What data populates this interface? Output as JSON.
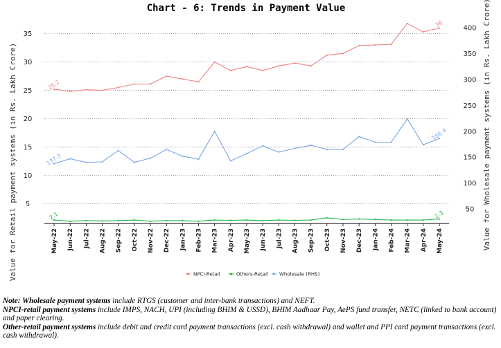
{
  "chart_data": {
    "type": "line",
    "title": "Chart - 6: Trends in Payment Value",
    "ylabel_left": "Value for Retail payment systems (in Rs. Lakh Crore)",
    "ylabel_right": "Value for Wholesale payment systems (in Rs. Lakh Crore)",
    "categories": [
      "May-22",
      "Jun-22",
      "Jul-22",
      "Aug-22",
      "Sep-22",
      "Oct-22",
      "Nov-22",
      "Dec-22",
      "Jan-23",
      "Feb-23",
      "Mar-23",
      "Apr-23",
      "May-23",
      "Jun-23",
      "Jul-23",
      "Aug-23",
      "Sep-23",
      "Oct-23",
      "Nov-23",
      "Dec-23",
      "Jan-24",
      "Feb-24",
      "Mar-24",
      "Apr-24",
      "May-24"
    ],
    "ylim_left": [
      1.5,
      38.5
    ],
    "yticks_left": [
      5,
      10,
      15,
      20,
      25,
      30,
      35
    ],
    "ylim_right": [
      22,
      427
    ],
    "yticks_right": [
      50,
      100,
      150,
      200,
      250,
      300,
      350,
      400
    ],
    "grid": "horizontal dotted",
    "legend_position": "bottom",
    "series": [
      {
        "name": "NPCI-Retail",
        "axis": "left",
        "color": "#f08080",
        "values": [
          25.2,
          24.8,
          25.1,
          25.0,
          25.5,
          26.1,
          26.1,
          27.5,
          27.0,
          26.5,
          30.0,
          28.5,
          29.2,
          28.5,
          29.3,
          29.8,
          29.3,
          31.2,
          31.5,
          32.9,
          33.0,
          33.1,
          36.8,
          35.3,
          36
        ],
        "labels": {
          "0": "25.2",
          "24": "36"
        }
      },
      {
        "name": "Others-Retail",
        "axis": "left",
        "color": "#22b44a",
        "values": [
          2.1,
          1.9,
          2.0,
          1.95,
          2.0,
          2.1,
          1.9,
          2.0,
          2.0,
          1.9,
          2.1,
          2.05,
          2.1,
          2.0,
          2.1,
          2.05,
          2.1,
          2.5,
          2.2,
          2.3,
          2.2,
          2.1,
          2.1,
          2.1,
          2.3
        ],
        "labels": {
          "0": "2.1",
          "24": "2.3"
        }
      },
      {
        "name": "Wholesale (RHS)",
        "axis": "right",
        "color": "#7aa6e6",
        "values": [
          137.3,
          147.0,
          140.0,
          141.0,
          163.0,
          140.0,
          148.0,
          165.0,
          152.0,
          146.0,
          200.0,
          143.0,
          157.0,
          172.0,
          160.0,
          167.0,
          173.0,
          165.0,
          165.0,
          190.0,
          179.0,
          179.0,
          224.0,
          174.0,
          186.4
        ],
        "labels": {
          "0": "137.3",
          "24": "186.4"
        }
      }
    ]
  },
  "legend": {
    "items": [
      "NPCI-Retail",
      "Others-Retail",
      "Wholesale (RHS)"
    ]
  },
  "notes": {
    "note1_lead": "Note: Wholesale payment systems",
    "note1_rest": " include RTGS (customer and inter-bank transactions) and NEFT.",
    "note2_lead": "NPCI-retail payment systems",
    "note2_rest": " include IMPS, NACH, UPI (including BHIM & USSD), BHIM Aadhaar Pay, AePS fund transfer, NETC (linked to bank account) and paper clearing.",
    "note3_lead": "Other-retail payment systems",
    "note3_rest": " include debit and credit card payment transactions (excl. cash withdrawal) and wallet and PPI card payment transactions (excl. cash withdrawal)."
  }
}
